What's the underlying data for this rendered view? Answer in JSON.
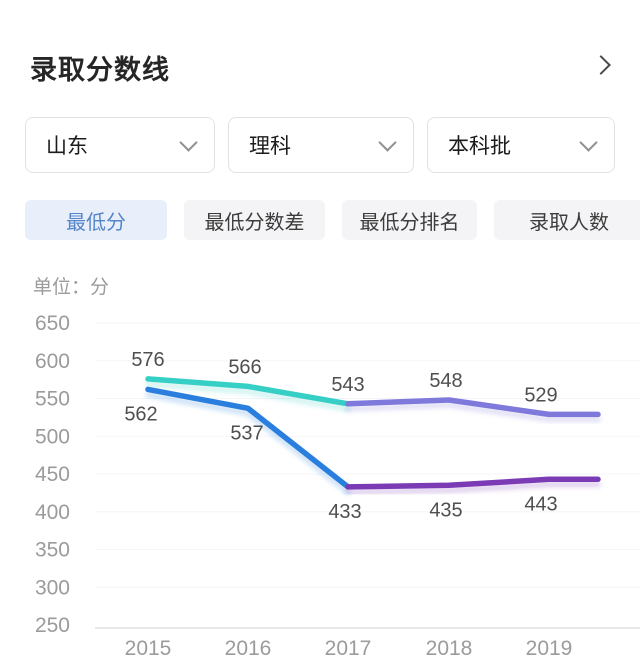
{
  "header": {
    "title": "录取分数线"
  },
  "filters": {
    "region": {
      "value": "山东"
    },
    "subject": {
      "value": "理科"
    },
    "batch": {
      "value": "本科批"
    }
  },
  "tabs": {
    "items": [
      {
        "label": "最低分",
        "active": true
      },
      {
        "label": "最低分数差",
        "active": false
      },
      {
        "label": "最低分排名",
        "active": false
      },
      {
        "label": "录取人数",
        "active": false
      }
    ]
  },
  "colors": {
    "active_tab_bg": "#e8effb",
    "active_tab_text": "#5585c8",
    "inactive_tab_bg": "#f4f4f6",
    "inactive_tab_text": "#3c3c3c",
    "axis_text": "#9b9b9b",
    "data_label_text": "#4f4f4f",
    "grid_line": "#f5f5f8",
    "axis_line": "#e2e2e6",
    "line_top_early": "#36cfc5",
    "line_top_late": "#7f79db",
    "line_bottom_early": "#2a7fde",
    "line_bottom_late": "#7b3bb4"
  },
  "chart_data": {
    "type": "line",
    "unit_label": "单位：分",
    "categories": [
      "2015",
      "2016",
      "2017",
      "2018",
      "2019"
    ],
    "series": [
      {
        "name": "upper-score-line",
        "values": [
          576,
          566,
          543,
          548,
          529
        ],
        "colors": {
          "early": "#36cfc5",
          "late": "#7f79db"
        },
        "color_change_at": "2017",
        "labels_position": "above"
      },
      {
        "name": "lower-score-line",
        "values": [
          562,
          537,
          433,
          435,
          443
        ],
        "colors": {
          "early": "#2a7fde",
          "late": "#7b3bb4"
        },
        "color_change_at": "2017",
        "labels_position": "below"
      }
    ],
    "ylim": [
      250,
      650
    ],
    "ytick_step": 50,
    "yticks": [
      650,
      600,
      550,
      500,
      450,
      400,
      350,
      300,
      250
    ],
    "grid": "faint-horizontal",
    "legend": "none",
    "data_labels_visible": true
  }
}
